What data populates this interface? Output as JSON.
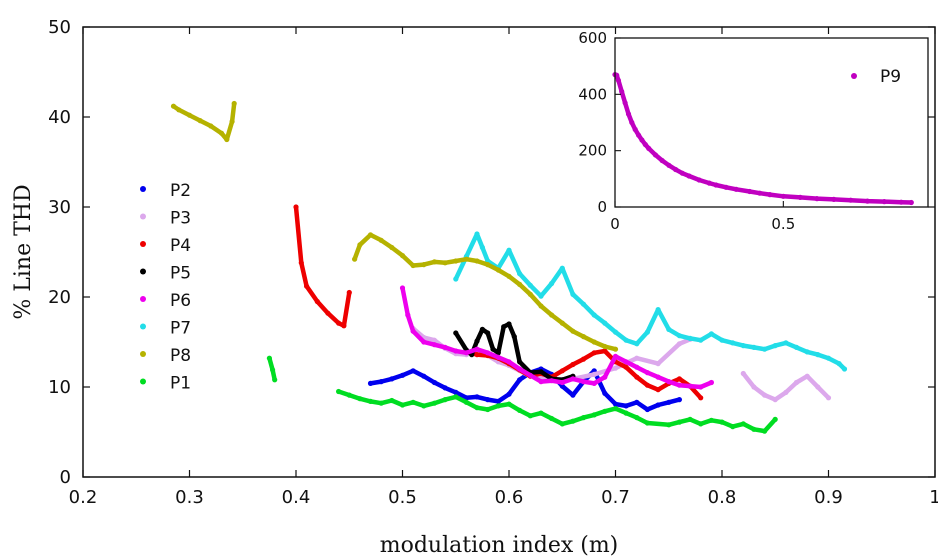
{
  "chart_data": [
    {
      "type": "scatter",
      "xlabel": "modulation index (m)",
      "ylabel": "% Line THD",
      "xlim": [
        0.2,
        1.0
      ],
      "ylim": [
        0,
        50
      ],
      "xticks": [
        "0.2",
        "0.3",
        "0.4",
        "0.5",
        "0.6",
        "0.7",
        "0.8",
        "0.9",
        "1"
      ],
      "yticks": [
        "0",
        "10",
        "20",
        "30",
        "40",
        "50"
      ],
      "grid": false,
      "legend": "left",
      "series": [
        {
          "name": "P2",
          "color": "#0000ee",
          "x": [
            0.47,
            0.48,
            0.49,
            0.5,
            0.51,
            0.52,
            0.53,
            0.54,
            0.55,
            0.56,
            0.57,
            0.58,
            0.59,
            0.6,
            0.61,
            0.62,
            0.63,
            0.64,
            0.65,
            0.66,
            0.67,
            0.68,
            0.69,
            0.7,
            0.71,
            0.72,
            0.73,
            0.74,
            0.75,
            0.76
          ],
          "y": [
            10.4,
            10.6,
            10.9,
            11.3,
            11.8,
            11.2,
            10.5,
            9.9,
            9.4,
            8.8,
            8.9,
            8.6,
            8.4,
            9.2,
            10.8,
            11.6,
            12.0,
            11.4,
            10.1,
            9.1,
            10.6,
            11.8,
            9.3,
            8.1,
            7.9,
            8.3,
            7.5,
            8.0,
            8.3,
            8.6
          ]
        },
        {
          "name": "P3",
          "color": "#dca8ec",
          "x": [
            0.51,
            0.52,
            0.53,
            0.54,
            0.55,
            0.56,
            0.57,
            0.58,
            0.59,
            0.6,
            0.62,
            0.64,
            0.66,
            0.68,
            0.7,
            0.72,
            0.74,
            0.76,
            0.77,
            0.82,
            0.83,
            0.84,
            0.85,
            0.86,
            0.87,
            0.88,
            0.89,
            0.9
          ],
          "y": [
            16.5,
            15.5,
            15.2,
            14.3,
            13.7,
            13.6,
            14.1,
            13.5,
            12.8,
            12.4,
            11.2,
            10.8,
            10.9,
            11.4,
            12.1,
            13.2,
            12.6,
            14.8,
            15.3,
            11.5,
            10.0,
            9.1,
            8.6,
            9.4,
            10.5,
            11.2,
            10.0,
            8.8
          ]
        },
        {
          "name": "P4",
          "color": "#ee0000",
          "x": [
            0.4,
            0.405,
            0.41,
            0.42,
            0.43,
            0.44,
            0.445,
            0.45,
            0.56,
            0.57,
            0.58,
            0.59,
            0.6,
            0.61,
            0.62,
            0.63,
            0.64,
            0.65,
            0.66,
            0.67,
            0.68,
            0.69,
            0.7,
            0.71,
            0.72,
            0.73,
            0.74,
            0.75,
            0.76,
            0.77,
            0.78
          ],
          "y": [
            30.0,
            23.8,
            21.2,
            19.5,
            18.2,
            17.1,
            16.8,
            20.5,
            13.9,
            13.6,
            13.5,
            13.2,
            12.6,
            11.9,
            11.2,
            11.5,
            11.1,
            11.8,
            12.5,
            13.1,
            13.8,
            14.0,
            12.8,
            12.2,
            11.1,
            10.2,
            9.7,
            10.4,
            10.9,
            10.1,
            8.8
          ]
        },
        {
          "name": "P5",
          "color": "#000000",
          "x": [
            0.55,
            0.56,
            0.565,
            0.57,
            0.575,
            0.58,
            0.585,
            0.59,
            0.595,
            0.6,
            0.605,
            0.61,
            0.62,
            0.63,
            0.64,
            0.65,
            0.66
          ],
          "y": [
            16.0,
            14.1,
            13.6,
            15.1,
            16.4,
            16.0,
            14.2,
            13.8,
            16.7,
            17.0,
            15.6,
            12.8,
            11.6,
            11.7,
            10.9,
            10.8,
            11.2
          ]
        },
        {
          "name": "P6",
          "color": "#ee00ee",
          "x": [
            0.5,
            0.505,
            0.51,
            0.52,
            0.53,
            0.54,
            0.55,
            0.56,
            0.57,
            0.58,
            0.59,
            0.6,
            0.61,
            0.62,
            0.63,
            0.64,
            0.65,
            0.66,
            0.67,
            0.68,
            0.69,
            0.7,
            0.71,
            0.72,
            0.73,
            0.74,
            0.75,
            0.76,
            0.77,
            0.78,
            0.79
          ],
          "y": [
            21.0,
            18.0,
            16.2,
            15.0,
            14.7,
            14.4,
            14.0,
            13.8,
            14.2,
            13.8,
            13.3,
            12.8,
            12.0,
            11.3,
            10.6,
            10.7,
            10.5,
            10.9,
            10.6,
            10.4,
            11.1,
            13.4,
            12.8,
            12.2,
            11.6,
            11.1,
            10.6,
            10.2,
            10.1,
            10.0,
            10.5
          ]
        },
        {
          "name": "P7",
          "color": "#22dde8",
          "x": [
            0.55,
            0.56,
            0.57,
            0.575,
            0.58,
            0.59,
            0.6,
            0.61,
            0.62,
            0.63,
            0.64,
            0.65,
            0.66,
            0.67,
            0.68,
            0.69,
            0.7,
            0.71,
            0.72,
            0.73,
            0.74,
            0.75,
            0.76,
            0.77,
            0.78,
            0.79,
            0.8,
            0.81,
            0.82,
            0.83,
            0.84,
            0.85,
            0.86,
            0.87,
            0.88,
            0.89,
            0.9,
            0.91,
            0.915
          ],
          "y": [
            22.0,
            24.5,
            27.0,
            25.5,
            24.0,
            23.2,
            25.2,
            22.6,
            21.3,
            20.1,
            21.5,
            23.2,
            20.3,
            19.2,
            18.0,
            17.1,
            16.1,
            15.2,
            14.8,
            16.1,
            18.6,
            16.4,
            15.7,
            15.4,
            15.2,
            15.9,
            15.2,
            14.9,
            14.6,
            14.4,
            14.2,
            14.6,
            14.9,
            14.4,
            13.9,
            13.6,
            13.2,
            12.6,
            12.0
          ]
        },
        {
          "name": "P8",
          "color": "#b5b200",
          "x": [
            0.285,
            0.29,
            0.3,
            0.31,
            0.32,
            0.33,
            0.335,
            0.34,
            0.342,
            0.455,
            0.46,
            0.47,
            0.48,
            0.49,
            0.5,
            0.51,
            0.52,
            0.53,
            0.54,
            0.55,
            0.56,
            0.57,
            0.58,
            0.59,
            0.6,
            0.61,
            0.62,
            0.63,
            0.64,
            0.65,
            0.66,
            0.67,
            0.68,
            0.69,
            0.7
          ],
          "y": [
            41.2,
            40.8,
            40.2,
            39.6,
            39.0,
            38.2,
            37.5,
            39.5,
            41.5,
            24.2,
            25.8,
            26.9,
            26.3,
            25.5,
            24.6,
            23.5,
            23.6,
            23.9,
            23.8,
            24.0,
            24.2,
            24.0,
            23.6,
            23.0,
            22.3,
            21.4,
            20.3,
            19.0,
            18.0,
            17.1,
            16.2,
            15.6,
            15.0,
            14.5,
            14.2
          ]
        },
        {
          "name": "P1",
          "color": "#00dd22",
          "x": [
            0.375,
            0.378,
            0.38,
            0.44,
            0.45,
            0.46,
            0.47,
            0.48,
            0.49,
            0.5,
            0.51,
            0.52,
            0.53,
            0.54,
            0.55,
            0.56,
            0.57,
            0.58,
            0.59,
            0.6,
            0.61,
            0.62,
            0.63,
            0.64,
            0.65,
            0.66,
            0.67,
            0.68,
            0.69,
            0.7,
            0.71,
            0.72,
            0.73,
            0.75,
            0.76,
            0.77,
            0.78,
            0.79,
            0.8,
            0.81,
            0.82,
            0.83,
            0.84,
            0.85
          ],
          "y": [
            13.2,
            11.9,
            10.8,
            9.5,
            9.1,
            8.7,
            8.4,
            8.2,
            8.5,
            8.0,
            8.3,
            7.9,
            8.2,
            8.6,
            8.9,
            8.3,
            7.7,
            7.5,
            7.9,
            8.1,
            7.4,
            6.8,
            7.1,
            6.5,
            5.9,
            6.2,
            6.6,
            6.9,
            7.3,
            7.6,
            7.1,
            6.6,
            6.0,
            5.8,
            6.1,
            6.4,
            5.9,
            6.3,
            6.1,
            5.6,
            5.9,
            5.3,
            5.1,
            6.4
          ]
        }
      ]
    },
    {
      "type": "scatter",
      "xlim": [
        0,
        0.9
      ],
      "ylim": [
        0,
        600
      ],
      "xticks": [
        "0",
        "0.5"
      ],
      "yticks": [
        "0",
        "200",
        "400",
        "600"
      ],
      "legend": "top-right",
      "series": [
        {
          "name": "P9",
          "color": "#c000c0",
          "x": [
            0.0,
            0.005,
            0.01,
            0.02,
            0.03,
            0.04,
            0.05,
            0.06,
            0.07,
            0.08,
            0.09,
            0.1,
            0.12,
            0.14,
            0.16,
            0.18,
            0.2,
            0.22,
            0.25,
            0.28,
            0.3,
            0.33,
            0.36,
            0.4,
            0.43,
            0.46,
            0.5,
            0.55,
            0.6,
            0.65,
            0.7,
            0.75,
            0.8,
            0.85,
            0.88
          ],
          "y": [
            470,
            468,
            450,
            410,
            370,
            330,
            300,
            275,
            255,
            238,
            222,
            208,
            185,
            165,
            148,
            133,
            120,
            110,
            96,
            85,
            78,
            70,
            63,
            55,
            49,
            44,
            38,
            34,
            30,
            27,
            24,
            21,
            19,
            17,
            16
          ]
        }
      ]
    }
  ]
}
